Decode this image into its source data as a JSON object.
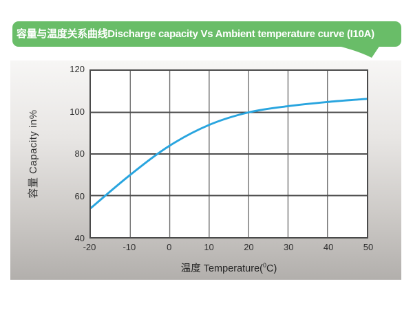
{
  "banner": {
    "title": "容量与温度关系曲线Discharge capacity Vs Ambient temperature curve (I10A)",
    "bg_color": "#69bd68",
    "text_color": "#ffffff"
  },
  "chart_data": {
    "type": "line",
    "title": "容量与温度关系曲线 Discharge capacity Vs Ambient temperature curve (I10A)",
    "xlabel_prefix": "温度 Temperature(",
    "xlabel_sup": "0",
    "xlabel_suffix": "C)",
    "ylabel": "容量 Capacity in%",
    "x_ticks": [
      -20,
      -10,
      0,
      10,
      20,
      30,
      40,
      50
    ],
    "y_ticks": [
      40,
      60,
      80,
      100,
      120
    ],
    "xlim": [
      -20,
      50
    ],
    "ylim": [
      40,
      120
    ],
    "grid": true,
    "legend": "none",
    "series": [
      {
        "name": "discharge-capacity",
        "color": "#29a5df",
        "points": [
          [
            -20,
            54
          ],
          [
            -10,
            70
          ],
          [
            0,
            84
          ],
          [
            10,
            94
          ],
          [
            20,
            100
          ],
          [
            30,
            103
          ],
          [
            40,
            105
          ],
          [
            50,
            106.5
          ]
        ]
      }
    ],
    "colors": {
      "plot_background": "#ffffff",
      "plot_border": "#4a4a4a",
      "h_gridline": "#4d4d4d",
      "v_gridline": "#6f6f6f"
    }
  }
}
